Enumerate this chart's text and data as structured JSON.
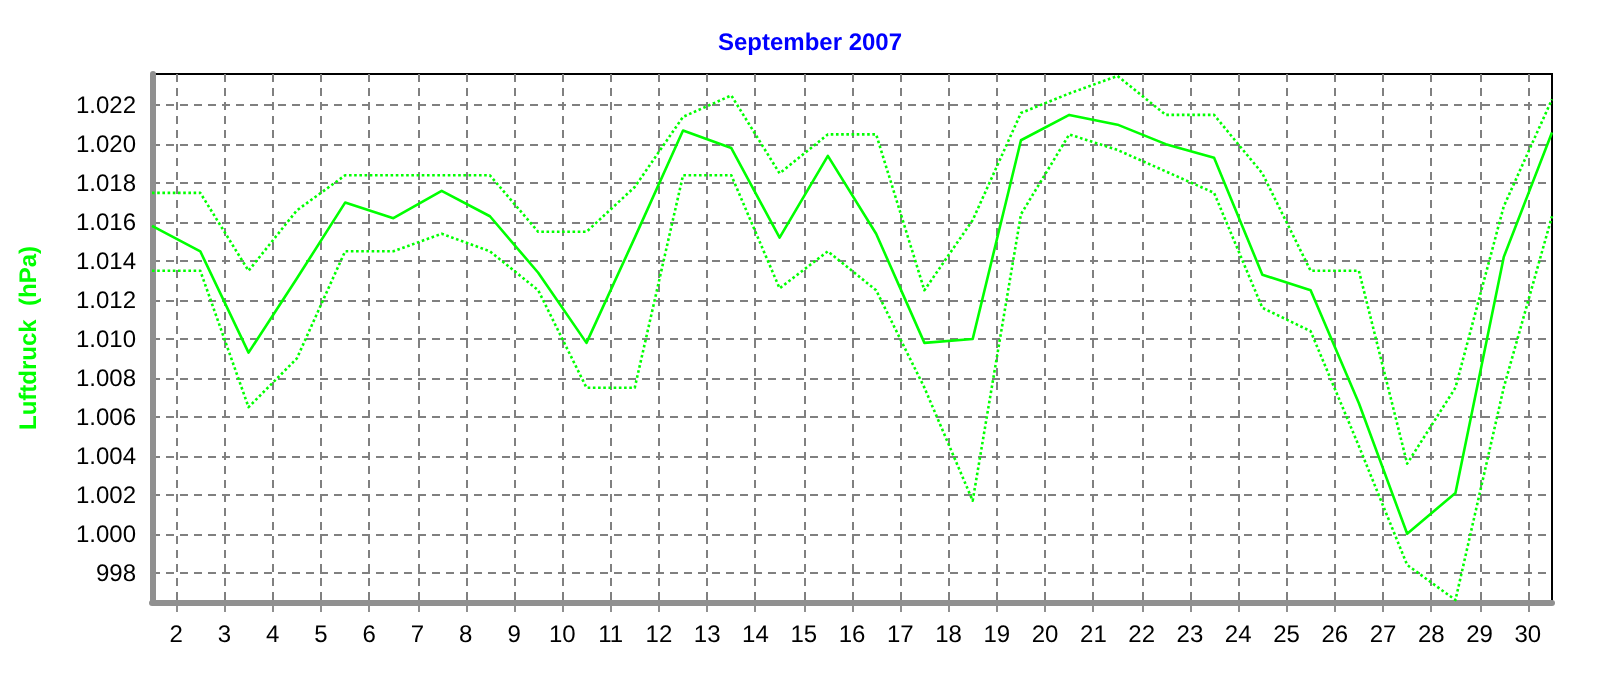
{
  "chart_data": {
    "type": "line",
    "title": "September 2007",
    "ylabel": "Luftdruck  (hPa)",
    "x": [
      1.5,
      2.5,
      3.5,
      4.5,
      5.5,
      6.5,
      7.5,
      8.5,
      9.5,
      10.5,
      11.5,
      12.5,
      13.5,
      14.5,
      15.5,
      16.5,
      17.5,
      18.5,
      19.5,
      20.5,
      21.5,
      22.5,
      23.5,
      24.5,
      25.5,
      26.5,
      27.5,
      28.5,
      29.5,
      30.5
    ],
    "series": [
      {
        "color": "#00ff00",
        "line_style": "dotted",
        "values": [
          1017.5,
          1017.5,
          1013.5,
          1016.6,
          1018.4,
          1018.4,
          1018.4,
          1018.4,
          1015.5,
          1015.5,
          1017.8,
          1021.4,
          1022.5,
          1018.5,
          1020.5,
          1020.5,
          1012.5,
          1016.1,
          1021.6,
          1022.6,
          1023.5,
          1021.5,
          1021.5,
          1018.5,
          1013.5,
          1013.5,
          1003.6,
          1007.5,
          1016.8,
          1022.3
        ]
      },
      {
        "color": "#00ff00",
        "line_style": "solid",
        "values": [
          1015.8,
          1014.5,
          1009.3,
          1013.1,
          1017.0,
          1016.2,
          1017.6,
          1016.3,
          1013.4,
          1009.8,
          1015.2,
          1020.7,
          1019.8,
          1015.2,
          1019.4,
          1015.4,
          1009.8,
          1010.0,
          1020.2,
          1021.5,
          1021.0,
          1020.0,
          1019.3,
          1013.3,
          1012.5,
          1006.7,
          1000.0,
          1002.1,
          1014.2,
          1020.6
        ]
      },
      {
        "color": "#00ff00",
        "line_style": "dotted",
        "values": [
          1013.5,
          1013.5,
          1006.5,
          1009.0,
          1014.5,
          1014.5,
          1015.4,
          1014.5,
          1012.5,
          1007.5,
          1007.5,
          1018.4,
          1018.4,
          1012.6,
          1014.5,
          1012.5,
          1007.5,
          1001.7,
          1016.4,
          1020.5,
          1019.7,
          1018.6,
          1017.5,
          1011.6,
          1010.4,
          1004.5,
          998.4,
          996.6,
          1007.5,
          1016.3
        ]
      }
    ],
    "xlim": [
      1.5,
      30.5
    ],
    "xticks": [
      2,
      3,
      4,
      5,
      6,
      7,
      8,
      9,
      10,
      11,
      12,
      13,
      14,
      15,
      16,
      17,
      18,
      19,
      20,
      21,
      22,
      23,
      24,
      25,
      26,
      27,
      28,
      29,
      30
    ],
    "ylim": [
      996.5,
      1023.6
    ],
    "yticks": [
      998,
      {
        "value": 1000,
        "label": "1.000"
      },
      {
        "value": 1002,
        "label": "1.002"
      },
      {
        "value": 1004,
        "label": "1.004"
      },
      {
        "value": 1006,
        "label": "1.006"
      },
      {
        "value": 1008,
        "label": "1.008"
      },
      {
        "value": 1010,
        "label": "1.010"
      },
      {
        "value": 1012,
        "label": "1.012"
      },
      {
        "value": 1014,
        "label": "1.014"
      },
      {
        "value": 1016,
        "label": "1.016"
      },
      {
        "value": 1018,
        "label": "1.018"
      },
      {
        "value": 1020,
        "label": "1.020"
      },
      {
        "value": 1022,
        "label": "1.022"
      }
    ],
    "grid": true,
    "marker": "none"
  }
}
